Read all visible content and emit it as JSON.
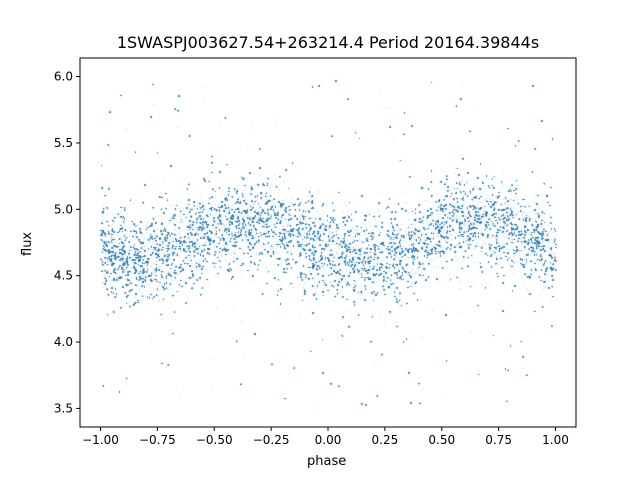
{
  "chart_data": {
    "type": "scatter",
    "title": "1SWASPJ003627.54+263214.4 Period 20164.39844s",
    "xlabel": "phase",
    "ylabel": "flux",
    "xlim": [
      -1.09,
      1.09
    ],
    "ylim": [
      3.36,
      6.14
    ],
    "xticks": [
      -1.0,
      -0.75,
      -0.5,
      -0.25,
      0.0,
      0.25,
      0.5,
      0.75,
      1.0
    ],
    "xtick_labels": [
      "−1.00",
      "−0.75",
      "−0.50",
      "−0.25",
      "0.00",
      "0.25",
      "0.50",
      "0.75",
      "1.00"
    ],
    "yticks": [
      3.5,
      4.0,
      4.5,
      5.0,
      5.5,
      6.0
    ],
    "ytick_labels": [
      "3.5",
      "4.0",
      "4.5",
      "5.0",
      "5.5",
      "6.0"
    ],
    "grid": false,
    "marker_color": "#1f77b4",
    "series_description": {
      "x_range": [
        -1.0,
        1.0
      ],
      "y_range": [
        3.5,
        6.0
      ],
      "mean_flux": 4.77,
      "amplitude": 0.13,
      "peak_phases": [
        -0.35,
        0.65
      ],
      "minimum_phases": [
        -0.85,
        0.15
      ]
    }
  }
}
